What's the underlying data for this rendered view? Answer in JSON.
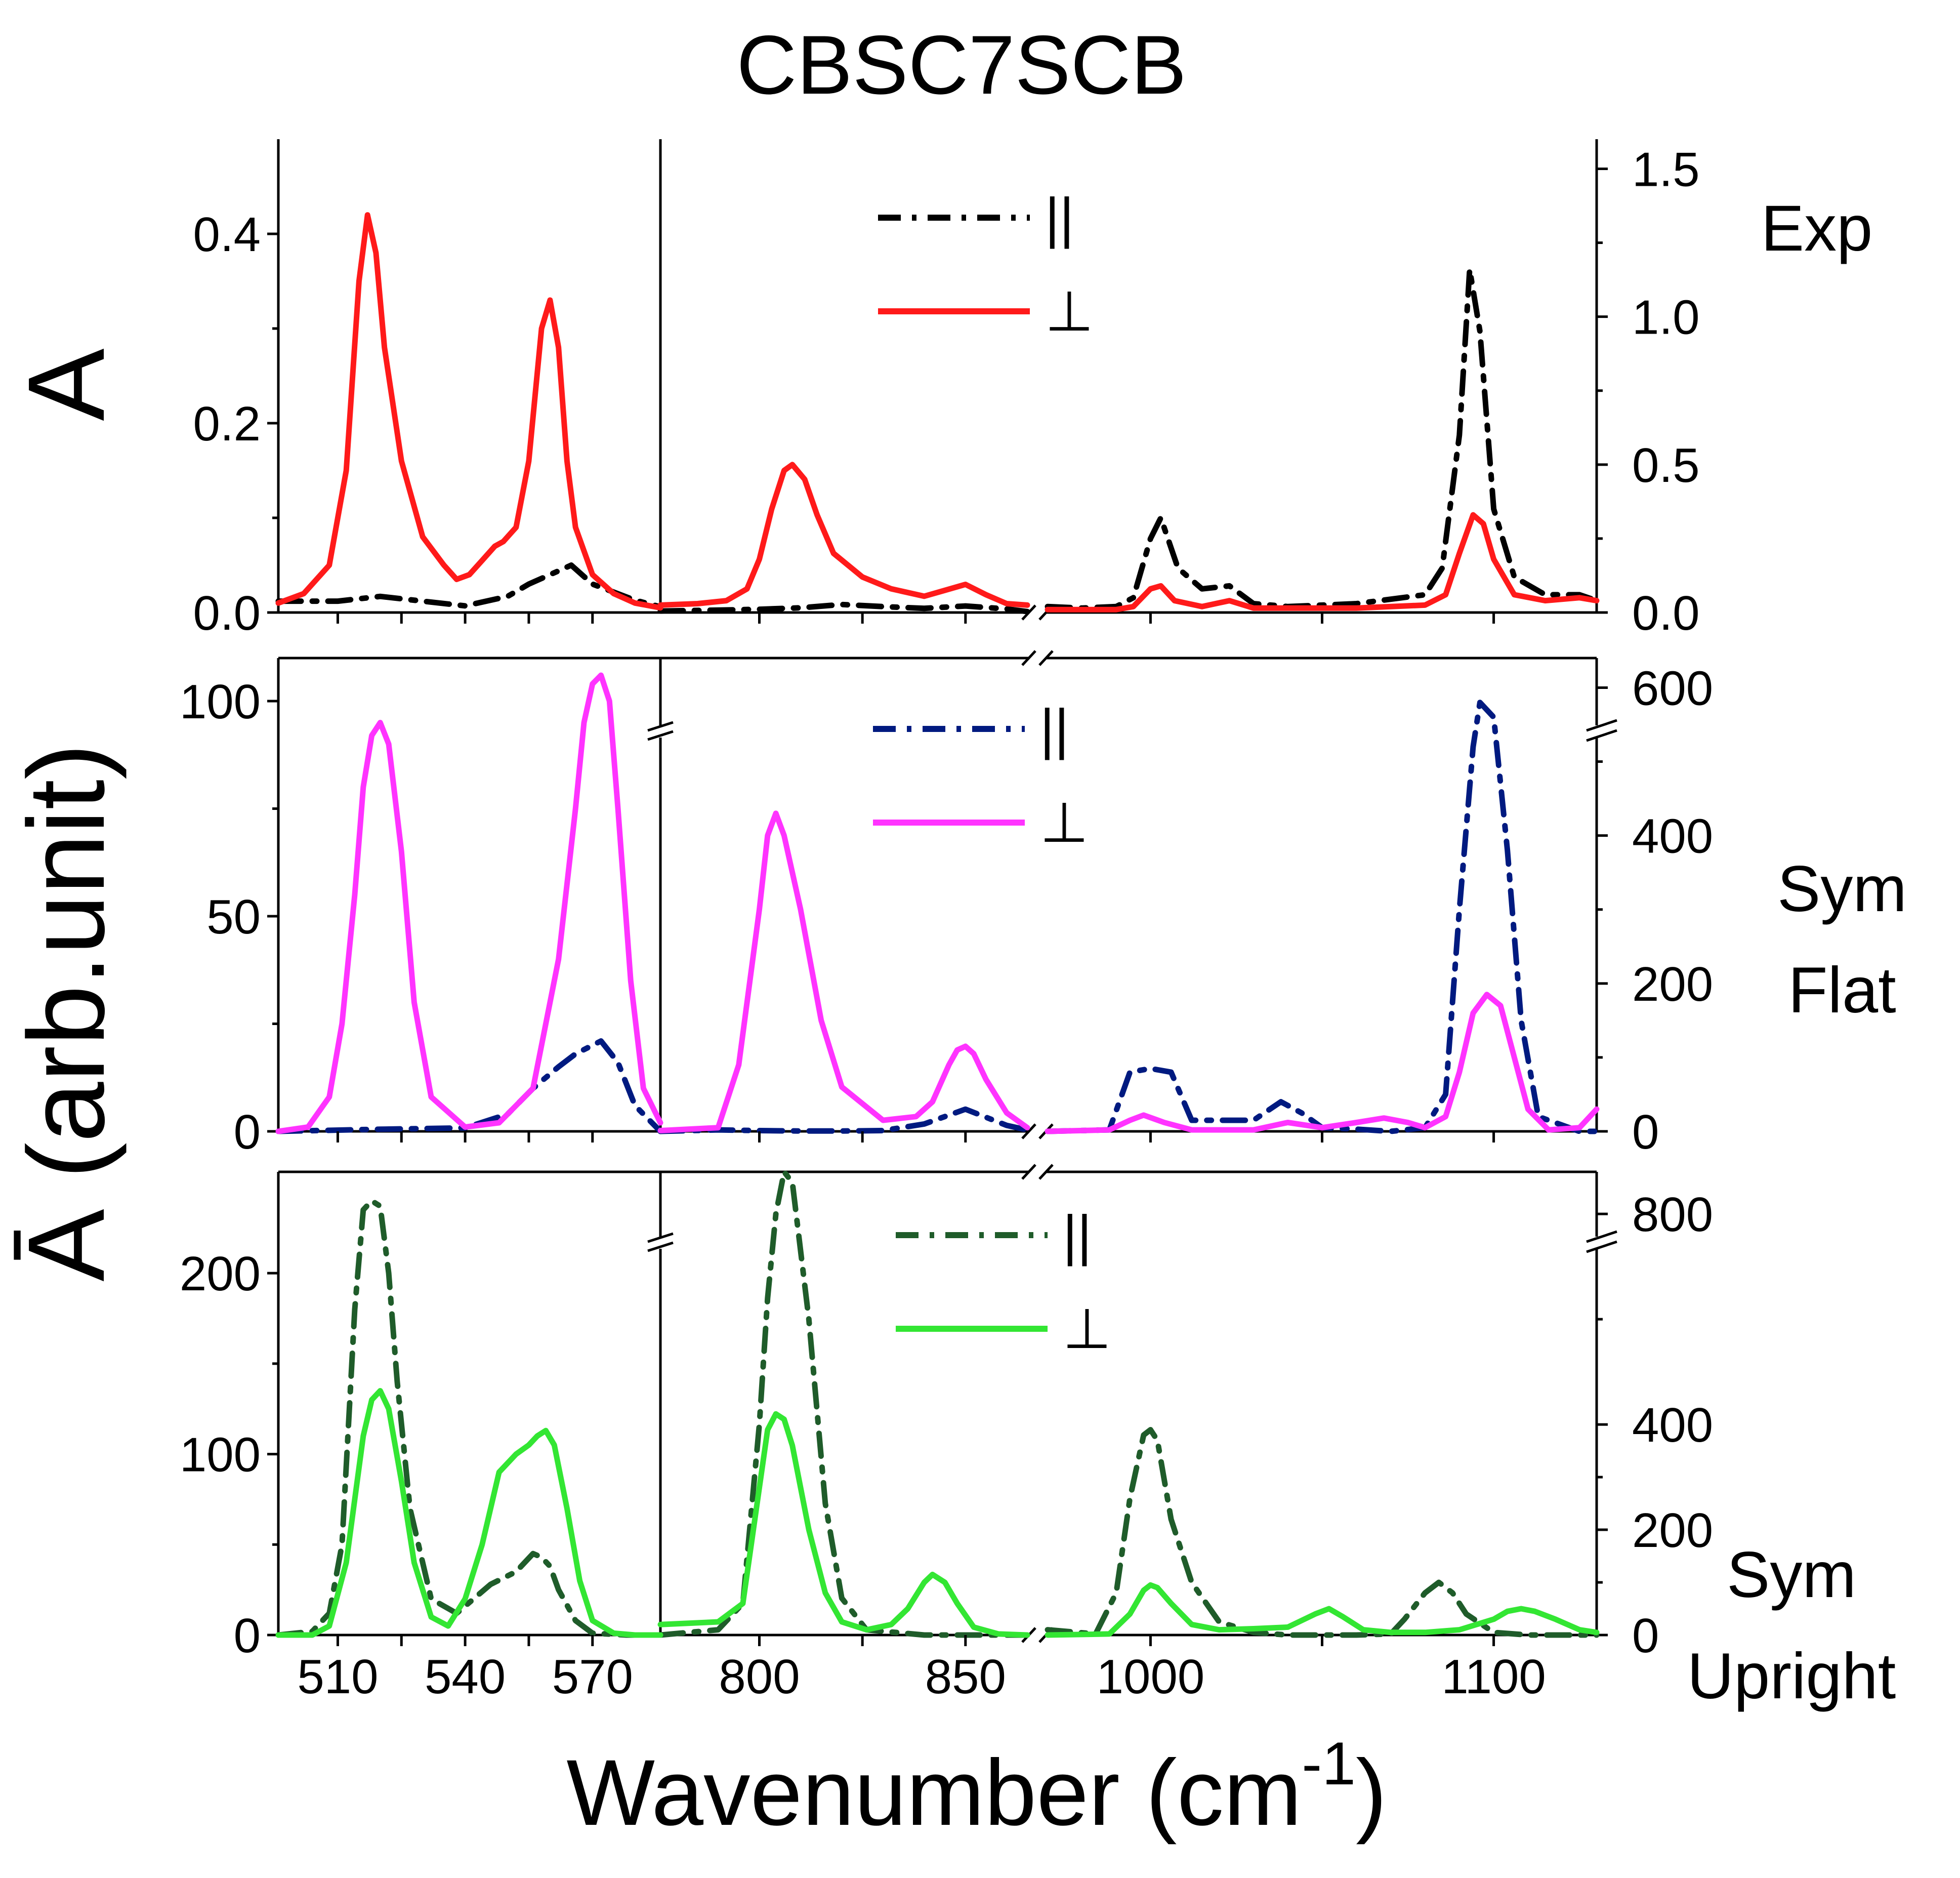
{
  "figure": {
    "title": "CBSC7SCB",
    "xlabel": "Wavenumber (cm",
    "xlabel_sup": "-1",
    "xlabel_close": ")",
    "ylabel_top": "A",
    "ylabel_bottom": "Ā (arb.unit)"
  },
  "chart_data": [
    {
      "type": "line",
      "panel": "Exp",
      "labels": [
        "Exp"
      ],
      "left_ylim": [
        0,
        0.5
      ],
      "left_ticks": [
        0.0,
        0.2,
        0.4
      ],
      "left_tick_labels": [
        "0.0",
        "0.2",
        "0.4"
      ],
      "right_ylim": [
        0,
        1.6
      ],
      "right_ticks": [
        0.0,
        0.5,
        1.0,
        1.5
      ],
      "right_tick_labels": [
        "0.0",
        "0.5",
        "1.0",
        "1.5"
      ],
      "legend": [
        {
          "label": "||",
          "style": "dash-dot",
          "color": "#000000"
        },
        {
          "label": "⊥",
          "style": "solid",
          "color": "#ff1a1a"
        }
      ],
      "series": [
        {
          "name": "||",
          "color": "#000000",
          "style": "dash-dot",
          "segment_left": {
            "x": [
              496,
              510,
              520,
              530,
              540,
              550,
              555,
              560,
              565,
              570,
              580,
              586
            ],
            "y": [
              0.012,
              0.012,
              0.017,
              0.012,
              0.007,
              0.017,
              0.03,
              0.04,
              0.05,
              0.03,
              0.013,
              0.006
            ]
          },
          "segment_mid": {
            "x": [
              776,
              790,
              800,
              810,
              820,
              830,
              840,
              850,
              860,
              865
            ],
            "y": [
              0.005,
              0.008,
              0.011,
              0.016,
              0.027,
              0.02,
              0.014,
              0.022,
              0.012,
              0.003
            ]
          },
          "segment_right": {
            "x": [
              970,
              980,
              990,
              995,
              1000,
              1003,
              1008,
              1015,
              1023,
              1030,
              1040,
              1060,
              1080,
              1085,
              1090,
              1093,
              1096,
              1100,
              1106,
              1115,
              1125,
              1130
            ],
            "y": [
              0.02,
              0.015,
              0.02,
              0.05,
              0.25,
              0.32,
              0.15,
              0.08,
              0.09,
              0.03,
              0.02,
              0.03,
              0.06,
              0.15,
              0.6,
              1.16,
              0.95,
              0.35,
              0.12,
              0.06,
              0.06,
              0.04
            ]
          }
        },
        {
          "name": "⊥",
          "color": "#ff1a1a",
          "style": "solid",
          "segment_left": {
            "x": [
              496,
              502,
              508,
              512,
              515,
              517,
              519,
              521,
              525,
              530,
              535,
              538,
              541,
              544,
              547,
              549,
              552,
              555,
              558,
              560,
              562,
              564,
              566,
              570,
              575,
              580,
              586
            ],
            "y": [
              0.01,
              0.02,
              0.05,
              0.15,
              0.35,
              0.42,
              0.38,
              0.28,
              0.16,
              0.08,
              0.05,
              0.035,
              0.04,
              0.055,
              0.07,
              0.075,
              0.09,
              0.16,
              0.3,
              0.33,
              0.28,
              0.16,
              0.09,
              0.04,
              0.02,
              0.01,
              0.005
            ]
          },
          "segment_mid": {
            "x": [
              776,
              785,
              792,
              797,
              800,
              803,
              806,
              808,
              811,
              814,
              818,
              825,
              832,
              840,
              845,
              850,
              855,
              860,
              865
            ],
            "y": [
              0.025,
              0.03,
              0.04,
              0.08,
              0.18,
              0.35,
              0.48,
              0.5,
              0.45,
              0.33,
              0.2,
              0.12,
              0.08,
              0.055,
              0.075,
              0.095,
              0.06,
              0.03,
              0.025
            ]
          },
          "segment_right": {
            "x": [
              970,
              990,
              995,
              1000,
              1003,
              1007,
              1015,
              1023,
              1030,
              1060,
              1080,
              1086,
              1090,
              1094,
              1097,
              1100,
              1106,
              1115,
              1125,
              1130
            ],
            "y": [
              0.01,
              0.01,
              0.02,
              0.08,
              0.09,
              0.04,
              0.02,
              0.04,
              0.015,
              0.015,
              0.025,
              0.06,
              0.2,
              0.33,
              0.3,
              0.18,
              0.06,
              0.04,
              0.05,
              0.04
            ]
          }
        }
      ]
    },
    {
      "type": "line",
      "panel": "Sym Flat",
      "labels": [
        "Sym",
        "Flat"
      ],
      "left_ylim": [
        0,
        110
      ],
      "left_ticks": [
        0,
        50,
        100
      ],
      "left_tick_labels": [
        "0",
        "50",
        "100"
      ],
      "right_ylim": [
        0,
        640
      ],
      "right_ticks": [
        0,
        200,
        400,
        600
      ],
      "right_tick_labels": [
        "0",
        "200",
        "400",
        "600"
      ],
      "legend": [
        {
          "label": "||",
          "style": "dash-dot",
          "color": "#001a80"
        },
        {
          "label": "⊥",
          "style": "solid",
          "color": "#ff33ff"
        }
      ],
      "series": [
        {
          "name": "||",
          "color": "#001a80",
          "style": "dash-dot",
          "segment_left": {
            "x": [
              496,
              520,
              540,
              550,
              556,
              562,
              566,
              570,
              572,
              576,
              580,
              586
            ],
            "y": [
              0,
              0.5,
              0.8,
              4,
              10,
              15,
              18,
              20,
              21,
              16,
              6,
              0
            ]
          },
          "segment_mid": {
            "x": [
              776,
              790,
              800,
              810,
              820,
              830,
              840,
              850,
              860,
              865
            ],
            "y": [
              0,
              2,
              1,
              0.5,
              0.5,
              1,
              10,
              30,
              8,
              2
            ]
          },
          "segment_right": {
            "x": [
              970,
              988,
              994,
              1000,
              1006,
              1012,
              1030,
              1038,
              1044,
              1050,
              1060,
              1070,
              1080,
              1086,
              1090,
              1094,
              1096,
              1100,
              1104,
              1108,
              1113,
              1125,
              1130
            ],
            "y": [
              0,
              2,
              80,
              85,
              80,
              15,
              15,
              40,
              25,
              5,
              3,
              0,
              5,
              50,
              300,
              520,
              580,
              560,
              380,
              150,
              20,
              0,
              0
            ]
          }
        },
        {
          "name": "⊥",
          "color": "#ff33ff",
          "style": "solid",
          "segment_left": {
            "x": [
              496,
              503,
              508,
              511,
              514,
              516,
              518,
              520,
              522,
              525,
              528,
              532,
              540,
              548,
              556,
              562,
              566,
              568,
              570,
              572,
              574,
              576,
              579,
              582,
              586
            ],
            "y": [
              0,
              1,
              8,
              25,
              55,
              80,
              92,
              95,
              90,
              65,
              30,
              8,
              1,
              2,
              10,
              40,
              75,
              95,
              104,
              106,
              100,
              75,
              35,
              10,
              2
            ]
          },
          "segment_mid": {
            "x": [
              776,
              790,
              795,
              800,
              802,
              804,
              806,
              810,
              815,
              820,
              830,
              838,
              842,
              846,
              848,
              850,
              852,
              855,
              860,
              865
            ],
            "y": [
              1,
              5,
              90,
              300,
              400,
              430,
              400,
              300,
              150,
              60,
              15,
              20,
              40,
              90,
              110,
              115,
              105,
              70,
              25,
              5
            ]
          },
          "segment_right": {
            "x": [
              970,
              988,
              994,
              998,
              1004,
              1012,
              1030,
              1040,
              1050,
              1060,
              1068,
              1075,
              1080,
              1086,
              1090,
              1094,
              1098,
              1102,
              1106,
              1110,
              1116,
              1125,
              1130
            ],
            "y": [
              0,
              2,
              15,
              22,
              12,
              2,
              2,
              12,
              5,
              12,
              18,
              12,
              5,
              20,
              80,
              160,
              185,
              170,
              100,
              30,
              2,
              5,
              30
            ]
          }
        }
      ]
    },
    {
      "type": "line",
      "panel": "Sym Upright",
      "labels": [
        "Sym",
        "Upright"
      ],
      "left_ylim": [
        0,
        256
      ],
      "left_ticks": [
        0,
        100,
        200
      ],
      "left_tick_labels": [
        "0",
        "100",
        "200"
      ],
      "right_ylim": [
        0,
        880
      ],
      "right_ticks": [
        0,
        200,
        400,
        800
      ],
      "right_tick_labels": [
        "0",
        "200",
        "400",
        "800"
      ],
      "legend": [
        {
          "label": "||",
          "style": "dash-dot",
          "color": "#1f5c2a"
        },
        {
          "label": "⊥",
          "style": "solid",
          "color": "#33e633"
        }
      ],
      "series": [
        {
          "name": "||",
          "color": "#1f5c2a",
          "style": "dash-dot",
          "segment_left": {
            "x": [
              496,
              504,
              508,
              511,
              514,
              516,
              518,
              520,
              522,
              524,
              527,
              532,
              538,
              546,
              552,
              556,
              558,
              560,
              562,
              566,
              570,
              578,
              586
            ],
            "y": [
              0,
              2,
              12,
              50,
              180,
              235,
              240,
              237,
              200,
              140,
              70,
              20,
              12,
              28,
              35,
              45,
              43,
              38,
              25,
              8,
              1,
              0,
              0
            ]
          },
          "segment_mid": {
            "x": [
              776,
              790,
              796,
              800,
              802,
              804,
              806,
              808,
              812,
              816,
              820,
              826,
              840,
              860,
              865
            ],
            "y": [
              0,
              10,
              60,
              400,
              640,
              800,
              880,
              860,
              600,
              250,
              70,
              10,
              0,
              0,
              0
            ]
          },
          "segment_right": {
            "x": [
              970,
              984,
              990,
              994,
              998,
              1000,
              1002,
              1006,
              1012,
              1020,
              1030,
              1040,
              1060,
              1070,
              1074,
              1080,
              1084,
              1088,
              1092,
              1100,
              1110,
              1130
            ],
            "y": [
              10,
              2,
              80,
              260,
              380,
              390,
              370,
              220,
              100,
              25,
              5,
              0,
              0,
              2,
              30,
              80,
              100,
              80,
              40,
              5,
              0,
              0
            ]
          }
        },
        {
          "name": "⊥",
          "color": "#33e633",
          "style": "solid",
          "segment_left": {
            "x": [
              496,
              504,
              508,
              512,
              516,
              518,
              520,
              522,
              525,
              528,
              532,
              536,
              540,
              544,
              548,
              552,
              555,
              557,
              559,
              561,
              564,
              567,
              570,
              575,
              580,
              586
            ],
            "y": [
              0,
              0,
              5,
              40,
              110,
              130,
              135,
              125,
              85,
              40,
              10,
              5,
              20,
              50,
              90,
              100,
              105,
              110,
              113,
              105,
              70,
              30,
              8,
              1,
              0,
              0
            ]
          },
          "segment_mid": {
            "x": [
              776,
              790,
              796,
              800,
              802,
              804,
              806,
              808,
              812,
              816,
              820,
              826,
              832,
              836,
              840,
              842,
              845,
              848,
              852,
              858,
              865
            ],
            "y": [
              20,
              25,
              60,
              280,
              390,
              420,
              410,
              360,
              200,
              80,
              25,
              10,
              20,
              50,
              100,
              115,
              100,
              60,
              15,
              2,
              0
            ]
          },
          "segment_right": {
            "x": [
              970,
              988,
              994,
              998,
              1000,
              1002,
              1006,
              1012,
              1020,
              1030,
              1040,
              1048,
              1052,
              1056,
              1062,
              1070,
              1080,
              1090,
              1100,
              1104,
              1108,
              1112,
              1118,
              1125,
              1130
            ],
            "y": [
              0,
              2,
              40,
              85,
              95,
              90,
              60,
              20,
              10,
              12,
              15,
              40,
              50,
              35,
              10,
              5,
              5,
              10,
              30,
              45,
              50,
              45,
              30,
              10,
              5
            ]
          }
        }
      ]
    }
  ],
  "x_axis": {
    "segments": [
      {
        "id": "left",
        "xlim": [
          496,
          586
        ],
        "ticks": [
          510,
          525,
          540,
          555,
          570
        ],
        "tick_labels": [
          "510",
          "540",
          "570"
        ],
        "label_positions": [
          510,
          540,
          570
        ]
      },
      {
        "id": "mid",
        "xlim": [
          776,
          865
        ],
        "ticks": [
          800,
          825,
          850
        ],
        "tick_labels": [
          "800",
          "850"
        ],
        "label_positions": [
          800,
          850
        ]
      },
      {
        "id": "right",
        "xlim": [
          970,
          1130
        ],
        "ticks": [
          1000,
          1050,
          1100
        ],
        "tick_labels": [
          "1000",
          "1100"
        ],
        "label_positions": [
          1000,
          1100
        ]
      }
    ]
  }
}
